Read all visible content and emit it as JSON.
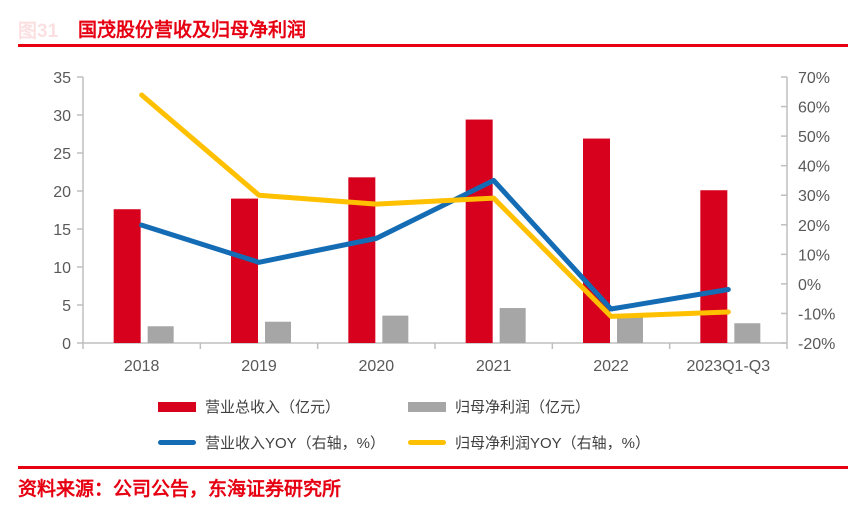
{
  "header": {
    "figure_label": "图31",
    "title": "国茂股份营收及归母净利润"
  },
  "source": {
    "text": "资料来源：公司公告，东海证券研究所"
  },
  "colors": {
    "accent_red": "#e60012",
    "bar_red": "#d7001d",
    "bar_gray": "#a6a6a6",
    "line_blue": "#136cb4",
    "line_yellow": "#ffc000",
    "axis_line": "#bfbfbf",
    "tick_label": "#595959",
    "legend_text": "#3f3f3f"
  },
  "chart_data": {
    "type": "bar+line combo",
    "title": "国茂股份营收及归母净利润",
    "categories": [
      "2018",
      "2019",
      "2020",
      "2021",
      "2022",
      "2023Q1-Q3"
    ],
    "series": [
      {
        "name": "营业总收入（亿元）",
        "type": "bar",
        "axis": "left",
        "color_key": "bar_red",
        "values": [
          17.6,
          19.0,
          21.8,
          29.4,
          26.9,
          20.1
        ]
      },
      {
        "name": "归母净利润（亿元）",
        "type": "bar",
        "axis": "left",
        "color_key": "bar_gray",
        "values": [
          2.2,
          2.8,
          3.6,
          4.6,
          3.7,
          2.6
        ]
      },
      {
        "name": "营业收入YOY（右轴，%）",
        "type": "line",
        "axis": "right",
        "color_key": "line_blue",
        "values": [
          19.9,
          7.3,
          15.4,
          35.0,
          -8.5,
          -1.9
        ]
      },
      {
        "name": "归母净利润YOY（右轴，%）",
        "type": "line",
        "axis": "right",
        "color_key": "line_yellow",
        "values": [
          63.9,
          30.0,
          27.0,
          29.0,
          -11.0,
          -9.5
        ]
      }
    ],
    "left_axis": {
      "min": 0,
      "max": 35,
      "step": 5,
      "ticks": [
        "0",
        "5",
        "10",
        "15",
        "20",
        "25",
        "30",
        "35"
      ]
    },
    "right_axis": {
      "min": -20,
      "max": 70,
      "step": 10,
      "suffix": "%",
      "ticks": [
        "-20%",
        "-10%",
        "0%",
        "10%",
        "20%",
        "30%",
        "40%",
        "50%",
        "60%",
        "70%"
      ]
    },
    "grid": false,
    "legend_position": "bottom"
  }
}
